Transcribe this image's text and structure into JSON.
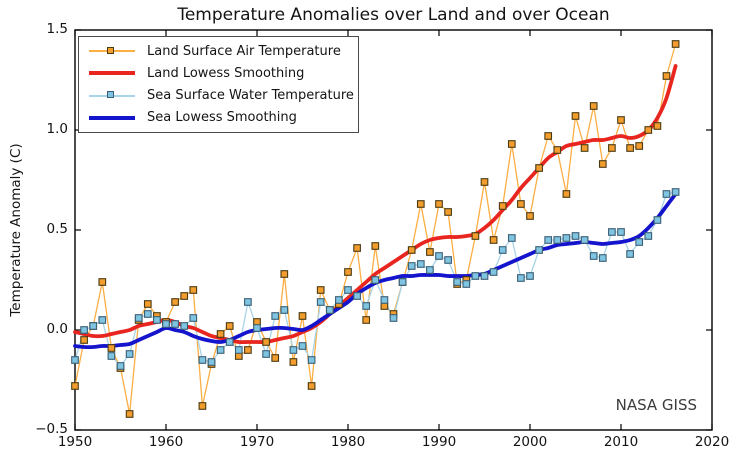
{
  "title": "Temperature Anomalies over Land and over Ocean",
  "watermark": "NASA GISS",
  "axes": {
    "ylabel": "Temperature Anomaly (C)",
    "xlim": [
      1950,
      2020
    ],
    "ylim": [
      -0.5,
      1.5
    ],
    "x_ticks": [
      {
        "value": 1950,
        "label": "1950"
      },
      {
        "value": 1960,
        "label": "1960"
      },
      {
        "value": 1970,
        "label": "1970"
      },
      {
        "value": 1980,
        "label": "1980"
      },
      {
        "value": 1990,
        "label": "1990"
      },
      {
        "value": 2000,
        "label": "2000"
      },
      {
        "value": 2010,
        "label": "2010"
      },
      {
        "value": 2020,
        "label": "2020"
      }
    ],
    "y_ticks": [
      {
        "value": -0.5,
        "label": "−0.5"
      },
      {
        "value": 0.0,
        "label": "0.0"
      },
      {
        "value": 0.5,
        "label": "0.5"
      },
      {
        "value": 1.0,
        "label": "1.0"
      },
      {
        "value": 1.5,
        "label": "1.5"
      }
    ],
    "frame_color": "#000000"
  },
  "legend": {
    "position": "upper left",
    "items": [
      {
        "label": "Land Surface Air Temperature",
        "swatch": "line-marker",
        "line_color": "#FBAE44",
        "marker_color": "#F29D2E",
        "marker_edge": "#4a3a10"
      },
      {
        "label": "Land Lowess Smoothing",
        "swatch": "thick-line",
        "line_color": "#E8261F"
      },
      {
        "label": "Sea Surface Water Temperature",
        "swatch": "line-marker",
        "line_color": "#A8D4E8",
        "marker_color": "#7FC4E0",
        "marker_edge": "#3a5f75"
      },
      {
        "label": "Sea Lowess Smoothing",
        "swatch": "thick-line",
        "line_color": "#1414CC"
      }
    ]
  },
  "chart_data": {
    "type": "line",
    "title": "Temperature Anomalies over Land and over Ocean",
    "xlabel": "",
    "ylabel": "Temperature Anomaly (C)",
    "xlim": [
      1950,
      2020
    ],
    "ylim": [
      -0.5,
      1.5
    ],
    "grid": false,
    "legend_position": "upper left",
    "source_label": "NASA GISS",
    "x_year_start": 1950,
    "x_year_end": 2016,
    "series": [
      {
        "name": "Land Surface Air Temperature",
        "type": "line+markers",
        "color": "#FBAE44",
        "marker_color": "#F29D2E",
        "marker_edge_color": "#4a3a10",
        "linewidth": 1.3,
        "values": [
          -0.28,
          -0.05,
          0.02,
          0.24,
          -0.09,
          -0.19,
          -0.42,
          0.05,
          0.13,
          0.07,
          0.04,
          0.14,
          0.17,
          0.2,
          -0.38,
          -0.17,
          -0.02,
          0.02,
          -0.13,
          -0.1,
          0.04,
          -0.06,
          -0.14,
          0.28,
          -0.16,
          0.07,
          -0.28,
          0.2,
          0.1,
          0.13,
          0.29,
          0.41,
          0.05,
          0.42,
          0.12,
          0.08,
          0.24,
          0.4,
          0.63,
          0.39,
          0.63,
          0.59,
          0.23,
          0.25,
          0.47,
          0.74,
          0.45,
          0.62,
          0.93,
          0.63,
          0.57,
          0.81,
          0.97,
          0.9,
          0.68,
          1.07,
          0.91,
          1.12,
          0.83,
          0.91,
          1.05,
          0.91,
          0.92,
          1.0,
          1.02,
          1.27,
          1.43
        ]
      },
      {
        "name": "Land Lowess Smoothing",
        "type": "smooth-line",
        "color": "#E8261F",
        "linewidth": 3.8,
        "values": [
          -0.01,
          -0.02,
          -0.03,
          -0.03,
          -0.02,
          -0.01,
          0.0,
          0.02,
          0.03,
          0.04,
          0.05,
          0.04,
          0.02,
          0.01,
          -0.01,
          -0.03,
          -0.04,
          -0.05,
          -0.06,
          -0.06,
          -0.06,
          -0.06,
          -0.05,
          -0.04,
          -0.03,
          -0.01,
          0.01,
          0.04,
          0.08,
          0.12,
          0.16,
          0.2,
          0.24,
          0.28,
          0.31,
          0.34,
          0.37,
          0.4,
          0.43,
          0.45,
          0.46,
          0.465,
          0.465,
          0.47,
          0.48,
          0.51,
          0.55,
          0.6,
          0.65,
          0.71,
          0.76,
          0.81,
          0.86,
          0.89,
          0.92,
          0.93,
          0.94,
          0.95,
          0.95,
          0.96,
          0.97,
          0.96,
          0.97,
          1.0,
          1.06,
          1.16,
          1.32
        ]
      },
      {
        "name": "Sea Surface Water Temperature",
        "type": "line+markers",
        "color": "#A8D4E8",
        "marker_color": "#7FC4E0",
        "marker_edge_color": "#3a5f75",
        "linewidth": 1.3,
        "values": [
          -0.15,
          0.0,
          0.02,
          0.05,
          -0.13,
          -0.18,
          -0.12,
          0.06,
          0.08,
          0.05,
          0.03,
          0.03,
          0.02,
          0.06,
          -0.15,
          -0.16,
          -0.1,
          -0.06,
          -0.1,
          0.14,
          0.01,
          -0.12,
          0.07,
          0.1,
          -0.1,
          -0.08,
          -0.15,
          0.14,
          0.1,
          0.15,
          0.2,
          0.17,
          0.12,
          0.25,
          0.15,
          0.06,
          0.24,
          0.32,
          0.33,
          0.3,
          0.37,
          0.35,
          0.24,
          0.23,
          0.27,
          0.27,
          0.29,
          0.4,
          0.46,
          0.26,
          0.27,
          0.4,
          0.45,
          0.45,
          0.46,
          0.47,
          0.45,
          0.37,
          0.36,
          0.49,
          0.49,
          0.38,
          0.44,
          0.47,
          0.55,
          0.68,
          0.69
        ]
      },
      {
        "name": "Sea Lowess Smoothing",
        "type": "smooth-line",
        "color": "#1414CC",
        "linewidth": 3.8,
        "values": [
          -0.08,
          -0.085,
          -0.085,
          -0.08,
          -0.08,
          -0.075,
          -0.07,
          -0.05,
          -0.03,
          -0.01,
          0.01,
          0.0,
          -0.01,
          -0.03,
          -0.045,
          -0.055,
          -0.06,
          -0.05,
          -0.03,
          -0.01,
          0.0,
          0.005,
          0.01,
          0.01,
          0.005,
          0.0,
          0.02,
          0.05,
          0.08,
          0.11,
          0.14,
          0.18,
          0.21,
          0.235,
          0.25,
          0.26,
          0.27,
          0.27,
          0.275,
          0.275,
          0.275,
          0.27,
          0.27,
          0.27,
          0.275,
          0.28,
          0.3,
          0.32,
          0.34,
          0.36,
          0.38,
          0.4,
          0.41,
          0.425,
          0.43,
          0.435,
          0.44,
          0.435,
          0.43,
          0.435,
          0.44,
          0.45,
          0.47,
          0.51,
          0.56,
          0.62,
          0.68
        ]
      }
    ]
  }
}
